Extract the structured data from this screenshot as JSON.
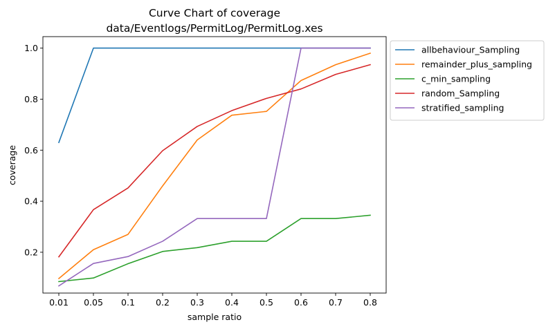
{
  "chart_data": {
    "type": "line",
    "title": "Curve Chart of coverage",
    "subtitle": "data/Eventlogs/PermitLog/PermitLog.xes",
    "xlabel": "sample ratio",
    "ylabel": "coverage",
    "categories": [
      "0.01",
      "0.05",
      "0.1",
      "0.2",
      "0.3",
      "0.4",
      "0.5",
      "0.6",
      "0.7",
      "0.8"
    ],
    "ylim": [
      0.04,
      1.045
    ],
    "yticks": [
      "0.2",
      "0.4",
      "0.6",
      "0.8",
      "1.0"
    ],
    "grid": false,
    "legend_position": "outside-right-top",
    "series": [
      {
        "name": "allbehaviour_Sampling",
        "color": "#1f77b4",
        "values": [
          0.63,
          1.0,
          1.0,
          1.0,
          1.0,
          1.0,
          1.0,
          1.0,
          1.0,
          1.0
        ]
      },
      {
        "name": "remainder_plus_sampling",
        "color": "#ff7f0e",
        "values": [
          0.097,
          0.21,
          0.27,
          0.46,
          0.64,
          0.737,
          0.752,
          0.873,
          0.935,
          0.98
        ]
      },
      {
        "name": "c_min_sampling",
        "color": "#2ca02c",
        "values": [
          0.085,
          0.099,
          0.155,
          0.203,
          0.218,
          0.243,
          0.243,
          0.332,
          0.332,
          0.345
        ]
      },
      {
        "name": "random_Sampling",
        "color": "#d62728",
        "values": [
          0.182,
          0.367,
          0.452,
          0.598,
          0.693,
          0.755,
          0.803,
          0.84,
          0.897,
          0.935
        ]
      },
      {
        "name": "stratified_sampling",
        "color": "#9467bd",
        "values": [
          0.068,
          0.156,
          0.183,
          0.243,
          0.332,
          0.332,
          0.332,
          1.0,
          1.0,
          1.0
        ]
      }
    ]
  }
}
